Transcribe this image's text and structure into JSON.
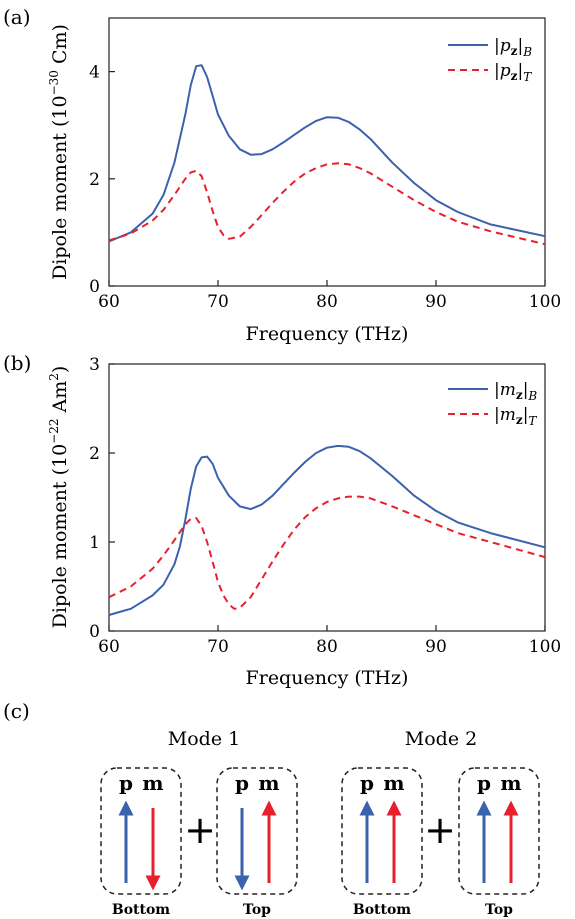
{
  "chart_data": [
    {
      "panel": "(a)",
      "type": "line",
      "xlabel": "Frequency (THz)",
      "ylabel": "Dipole moment (10",
      "ylabel_exp": "−30",
      "ylabel_unit": " Cm)",
      "xlim": [
        60,
        100
      ],
      "ylim": [
        0,
        5
      ],
      "xticks": [
        60,
        70,
        80,
        90,
        100
      ],
      "yticks": [
        0,
        2,
        4
      ],
      "grid": false,
      "legend_position": "top-right",
      "series": [
        {
          "name": "|p_z|_B",
          "legend_main": "|p",
          "legend_sub": "z",
          "legend_tail": "|",
          "legend_sub2": "B",
          "color": "#3a62ad",
          "style": "solid",
          "x": [
            60,
            62,
            64,
            65,
            66,
            67,
            67.5,
            68,
            68.5,
            69,
            69.5,
            70,
            71,
            72,
            73,
            74,
            75,
            76,
            77,
            78,
            79,
            80,
            81,
            82,
            83,
            84,
            86,
            88,
            90,
            92,
            95,
            100
          ],
          "y": [
            0.83,
            1.0,
            1.35,
            1.7,
            2.3,
            3.2,
            3.75,
            4.1,
            4.12,
            3.9,
            3.55,
            3.2,
            2.8,
            2.55,
            2.45,
            2.46,
            2.55,
            2.68,
            2.82,
            2.96,
            3.08,
            3.15,
            3.14,
            3.06,
            2.92,
            2.74,
            2.3,
            1.92,
            1.6,
            1.38,
            1.15,
            0.93
          ]
        },
        {
          "name": "|p_z|_T",
          "legend_main": "|p",
          "legend_sub": "z",
          "legend_tail": "|",
          "legend_sub2": "T",
          "color": "#e8202e",
          "style": "dashed",
          "x": [
            60,
            62,
            64,
            65,
            66,
            67,
            67.5,
            68,
            68.5,
            69,
            69.5,
            70,
            70.5,
            71,
            72,
            73,
            74,
            75,
            76,
            77,
            78,
            79,
            80,
            81,
            82,
            83,
            84,
            86,
            88,
            90,
            92,
            95,
            100
          ],
          "y": [
            0.85,
            0.98,
            1.22,
            1.42,
            1.7,
            2.0,
            2.12,
            2.15,
            2.05,
            1.75,
            1.4,
            1.1,
            0.95,
            0.88,
            0.92,
            1.1,
            1.32,
            1.55,
            1.76,
            1.95,
            2.1,
            2.2,
            2.27,
            2.29,
            2.27,
            2.2,
            2.1,
            1.85,
            1.6,
            1.38,
            1.2,
            1.02,
            0.78
          ]
        }
      ]
    },
    {
      "panel": "(b)",
      "type": "line",
      "xlabel": "Frequency (THz)",
      "ylabel": "Dipole moment (10",
      "ylabel_exp": "−22",
      "ylabel_unit": " Am",
      "ylabel_unit_exp": "2",
      "ylabel_close": ")",
      "xlim": [
        60,
        100
      ],
      "ylim": [
        0,
        3
      ],
      "xticks": [
        60,
        70,
        80,
        90,
        100
      ],
      "yticks": [
        0,
        1,
        2,
        3
      ],
      "grid": false,
      "legend_position": "top-right",
      "series": [
        {
          "name": "|m_z|_B",
          "legend_main": "|m",
          "legend_sub": "z",
          "legend_tail": "|",
          "legend_sub2": "B",
          "color": "#3a62ad",
          "style": "solid",
          "x": [
            60,
            62,
            64,
            65,
            66,
            66.5,
            67,
            67.5,
            68,
            68.5,
            69,
            69.5,
            70,
            71,
            72,
            73,
            74,
            75,
            76,
            77,
            78,
            79,
            80,
            81,
            82,
            83,
            84,
            86,
            88,
            90,
            92,
            95,
            100
          ],
          "y": [
            0.18,
            0.25,
            0.4,
            0.52,
            0.75,
            0.95,
            1.25,
            1.6,
            1.85,
            1.95,
            1.96,
            1.88,
            1.72,
            1.52,
            1.4,
            1.37,
            1.42,
            1.52,
            1.65,
            1.78,
            1.9,
            2.0,
            2.06,
            2.08,
            2.07,
            2.02,
            1.94,
            1.74,
            1.52,
            1.35,
            1.22,
            1.1,
            0.94
          ]
        },
        {
          "name": "|m_z|_T",
          "legend_main": "|m",
          "legend_sub": "z",
          "legend_tail": "|",
          "legend_sub2": "T",
          "color": "#e8202e",
          "style": "dashed",
          "x": [
            60,
            62,
            64,
            65,
            66,
            67,
            67.5,
            68,
            68.5,
            69,
            69.5,
            70,
            70.5,
            71,
            71.5,
            72,
            73,
            74,
            75,
            76,
            77,
            78,
            79,
            80,
            81,
            82,
            83,
            84,
            86,
            88,
            90,
            92,
            95,
            100
          ],
          "y": [
            0.38,
            0.5,
            0.7,
            0.85,
            1.02,
            1.2,
            1.26,
            1.27,
            1.18,
            1.0,
            0.78,
            0.55,
            0.4,
            0.3,
            0.25,
            0.26,
            0.38,
            0.58,
            0.78,
            0.97,
            1.14,
            1.28,
            1.38,
            1.45,
            1.49,
            1.51,
            1.51,
            1.49,
            1.4,
            1.3,
            1.2,
            1.1,
            1.0,
            0.83
          ]
        }
      ]
    }
  ],
  "diagram": {
    "panel": "(c)",
    "plus": "+",
    "modes": [
      {
        "title": "Mode 1",
        "boxes": [
          {
            "caption": "Bottom",
            "p_label": "p",
            "m_label": "m",
            "p_dir": "up",
            "m_dir": "down"
          },
          {
            "caption": "Top",
            "p_label": "p",
            "m_label": "m",
            "p_dir": "down",
            "m_dir": "up"
          }
        ]
      },
      {
        "title": "Mode 2",
        "boxes": [
          {
            "caption": "Bottom",
            "p_label": "p",
            "m_label": "m",
            "p_dir": "up",
            "m_dir": "up"
          },
          {
            "caption": "Top",
            "p_label": "p",
            "m_label": "m",
            "p_dir": "up",
            "m_dir": "up"
          }
        ]
      }
    ],
    "colors": {
      "p": "#3a62ad",
      "m": "#e8202e"
    }
  }
}
